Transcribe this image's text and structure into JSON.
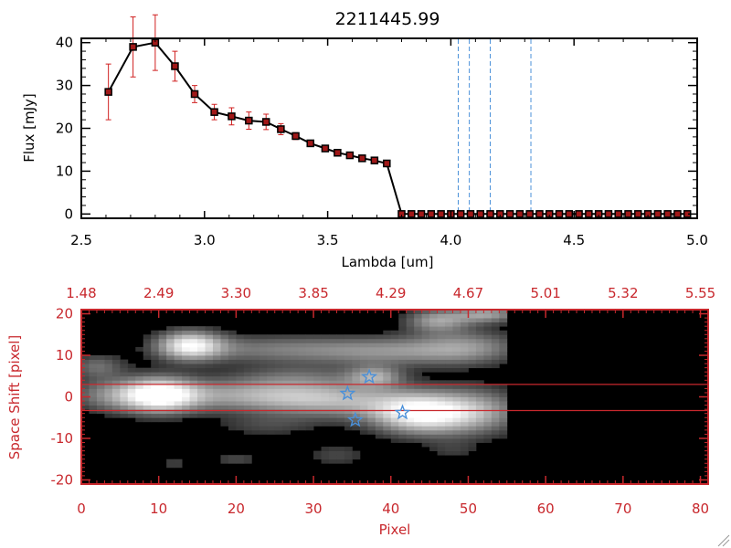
{
  "chart_data": [
    {
      "type": "line",
      "title": "2211445.99",
      "xlabel": "Lambda [um]",
      "ylabel": "Flux [mJy]",
      "xlim": [
        2.5,
        5.0
      ],
      "ylim": [
        -1,
        41
      ],
      "x_ticks": [
        "2.5",
        "3.0",
        "3.5",
        "4.0",
        "4.5",
        "5.0"
      ],
      "y_ticks": [
        "0",
        "10",
        "20",
        "30",
        "40"
      ],
      "grid": false,
      "line_color": "#000000",
      "marker_color": "#a01818",
      "errorbar_color": "#d02020",
      "vline_color": "#4a90d9",
      "series": [
        {
          "x": [
            2.61,
            2.71,
            2.8,
            2.88,
            2.96,
            3.04,
            3.11,
            3.18,
            3.25,
            3.31,
            3.37,
            3.43,
            3.49,
            3.54,
            3.59,
            3.64,
            3.69,
            3.74,
            3.8,
            3.84,
            3.88,
            3.92,
            3.96,
            4.0,
            4.04,
            4.08,
            4.12,
            4.16,
            4.2,
            4.24,
            4.28,
            4.32,
            4.36,
            4.4,
            4.44,
            4.48,
            4.52,
            4.56,
            4.6,
            4.64,
            4.68,
            4.72,
            4.76,
            4.8,
            4.84,
            4.88,
            4.92,
            4.96
          ],
          "y": [
            28.5,
            39.0,
            40.0,
            34.5,
            28.0,
            23.8,
            22.8,
            21.8,
            21.5,
            19.8,
            18.2,
            16.5,
            15.3,
            14.3,
            13.7,
            13.0,
            12.5,
            11.8,
            0,
            0,
            0,
            0,
            0,
            0,
            0,
            0,
            0,
            0,
            0,
            0,
            0,
            0,
            0,
            0,
            0,
            0,
            0,
            0,
            0,
            0,
            0,
            0,
            0,
            0,
            0,
            0,
            0,
            0
          ],
          "yerr": [
            6.5,
            7.0,
            6.5,
            3.5,
            2.0,
            1.8,
            2.0,
            2.0,
            1.8,
            1.3,
            0.8,
            0.7,
            0.6,
            0.6,
            0.5,
            0.5,
            0.5,
            0.5,
            0,
            0,
            0,
            0,
            0,
            0,
            0,
            0,
            0,
            0,
            0,
            0,
            0,
            0,
            0,
            0,
            0,
            0,
            0,
            0,
            0,
            0,
            0,
            0,
            0,
            0,
            0,
            0,
            0,
            0
          ]
        }
      ],
      "vlines": [
        4.03,
        4.075,
        4.16,
        4.325
      ]
    },
    {
      "type": "heatmap",
      "xlabel": "Pixel",
      "ylabel": "Space Shift [pixel]",
      "xlim": [
        0,
        81
      ],
      "ylim": [
        -21,
        21
      ],
      "x_ticks": [
        "0",
        "10",
        "20",
        "30",
        "40",
        "50",
        "60",
        "70",
        "80"
      ],
      "y_ticks": [
        "-20",
        "-10",
        "0",
        "10",
        "20"
      ],
      "top_ticks": [
        "1.48",
        "2.49",
        "3.30",
        "3.85",
        "4.29",
        "4.67",
        "5.01",
        "5.32",
        "5.55"
      ],
      "axis_color": "#c8282d",
      "colormap": "grayscale",
      "hlines": [
        3,
        -3.3
      ],
      "hline_color": "#c8282d",
      "star_color": "#4a90d9",
      "stars": [
        {
          "x": 37.2,
          "y": 4.8
        },
        {
          "x": 34.4,
          "y": 0.8
        },
        {
          "x": 35.4,
          "y": -5.6
        },
        {
          "x": 41.5,
          "y": -3.8
        }
      ],
      "blobs": [
        {
          "x": 10.0,
          "y": 0.5,
          "sx": 3.5,
          "sy": 3.0,
          "a": 1.0
        },
        {
          "x": 3.0,
          "y": 0.5,
          "sx": 3.5,
          "sy": 3.0,
          "a": 0.35
        },
        {
          "x": 22.0,
          "y": 0.5,
          "sx": 9.0,
          "sy": 2.8,
          "a": 0.55
        },
        {
          "x": 33.0,
          "y": -1.0,
          "sx": 7.0,
          "sy": 3.0,
          "a": 0.45
        },
        {
          "x": 43.5,
          "y": -4.0,
          "sx": 4.5,
          "sy": 3.5,
          "a": 0.9
        },
        {
          "x": 51.0,
          "y": -3.5,
          "sx": 4.5,
          "sy": 4.0,
          "a": 0.55
        },
        {
          "x": 14.0,
          "y": 12.5,
          "sx": 3.0,
          "sy": 2.5,
          "a": 0.85
        },
        {
          "x": 25.0,
          "y": 11.5,
          "sx": 9.0,
          "sy": 2.5,
          "a": 0.4
        },
        {
          "x": 40.0,
          "y": 11.0,
          "sx": 7.0,
          "sy": 2.5,
          "a": 0.4
        },
        {
          "x": 50.0,
          "y": 12.0,
          "sx": 5.0,
          "sy": 3.0,
          "a": 0.45
        },
        {
          "x": 46.0,
          "y": 18.5,
          "sx": 3.0,
          "sy": 2.0,
          "a": 0.55
        },
        {
          "x": 52.5,
          "y": 20.0,
          "sx": 3.0,
          "sy": 1.5,
          "a": 0.55
        },
        {
          "x": 38.0,
          "y": 5.0,
          "sx": 2.5,
          "sy": 1.8,
          "a": 0.5
        },
        {
          "x": 28.0,
          "y": 5.0,
          "sx": 6.0,
          "sy": 2.0,
          "a": 0.25
        },
        {
          "x": 2.0,
          "y": 7.5,
          "sx": 2.5,
          "sy": 2.0,
          "a": 0.35
        },
        {
          "x": 20.0,
          "y": -15.0,
          "sx": 2.5,
          "sy": 1.6,
          "a": 0.22
        },
        {
          "x": 33.0,
          "y": -14.0,
          "sx": 3.0,
          "sy": 2.0,
          "a": 0.22
        },
        {
          "x": 12.0,
          "y": -16.0,
          "sx": 1.6,
          "sy": 1.2,
          "a": 0.2
        },
        {
          "x": 24.0,
          "y": -7.0,
          "sx": 5.0,
          "sy": 2.0,
          "a": 0.2
        },
        {
          "x": 48.0,
          "y": -13.0,
          "sx": 2.5,
          "sy": 1.8,
          "a": 0.15
        }
      ],
      "data_columns": 55
    }
  ]
}
